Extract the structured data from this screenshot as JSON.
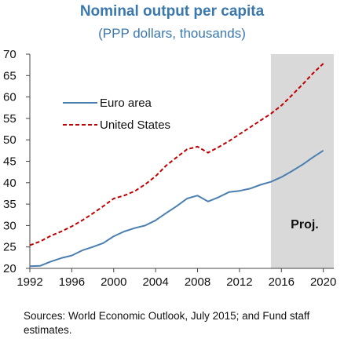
{
  "chart_data": {
    "type": "line",
    "title": "Nominal output per capita",
    "subtitle": "(PPP dollars, thousands)",
    "xlim": [
      1992,
      2021
    ],
    "ylim": [
      20,
      70
    ],
    "x_ticks": [
      1992,
      1996,
      2000,
      2004,
      2008,
      2012,
      2016,
      2020
    ],
    "y_ticks": [
      20,
      25,
      30,
      35,
      40,
      45,
      50,
      55,
      60,
      65,
      70
    ],
    "grid": false,
    "legend_position": "upper-left",
    "projection": {
      "start": 2015,
      "end": 2021,
      "label": "Proj.",
      "color": "#d9d9d9"
    },
    "x": [
      1992,
      1993,
      1994,
      1995,
      1996,
      1997,
      1998,
      1999,
      2000,
      2001,
      2002,
      2003,
      2004,
      2005,
      2006,
      2007,
      2008,
      2009,
      2010,
      2011,
      2012,
      2013,
      2014,
      2015,
      2016,
      2017,
      2018,
      2019,
      2020
    ],
    "series": [
      {
        "name": "Euro area",
        "color": "#4a7fb0",
        "style": "solid",
        "values": [
          20.5,
          20.6,
          21.6,
          22.4,
          23.0,
          24.2,
          25.0,
          25.9,
          27.5,
          28.6,
          29.4,
          30.0,
          31.2,
          32.9,
          34.5,
          36.3,
          37.0,
          35.6,
          36.6,
          37.8,
          38.1,
          38.6,
          39.5,
          40.2,
          41.3,
          42.7,
          44.2,
          45.9,
          47.5
        ]
      },
      {
        "name": "United States",
        "color": "#c00000",
        "style": "dashed",
        "values": [
          25.4,
          26.3,
          27.6,
          28.6,
          29.8,
          31.2,
          32.8,
          34.5,
          36.3,
          37.0,
          38.0,
          39.6,
          41.5,
          44.0,
          45.9,
          47.8,
          48.4,
          47.0,
          48.3,
          49.7,
          51.3,
          52.9,
          54.5,
          56.1,
          58.0,
          60.4,
          62.9,
          65.5,
          67.8
        ]
      }
    ]
  },
  "source_note": "Sources: World Economic Outlook, July 2015; and Fund staff estimates."
}
